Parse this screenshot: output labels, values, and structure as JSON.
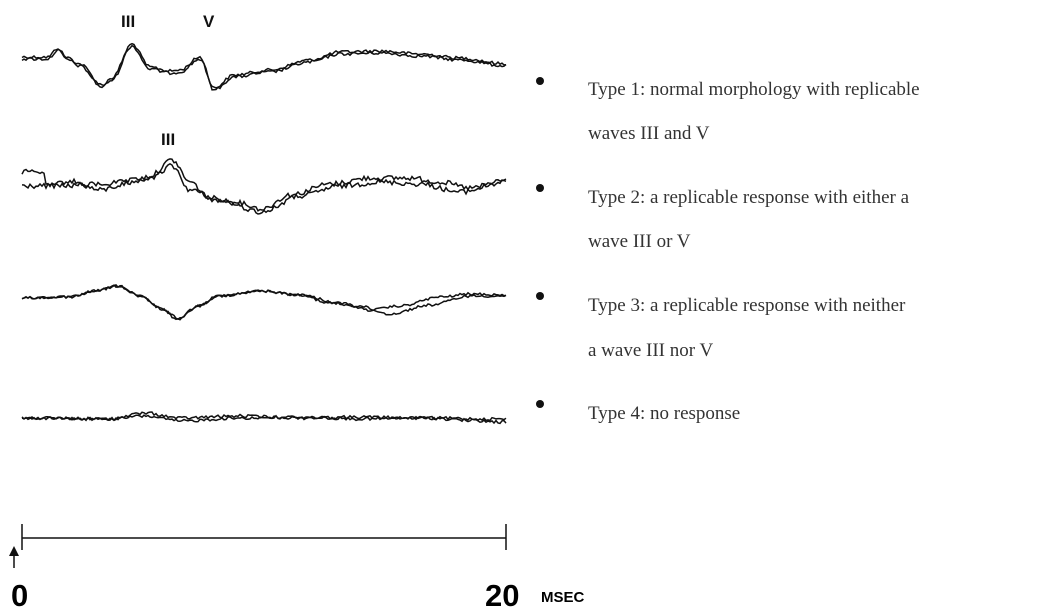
{
  "trace_labels": {
    "t1_wave3": "III",
    "t1_wave5": "V",
    "t2_wave3": "III"
  },
  "legend": [
    {
      "line1": "Type 1: normal morphology with replicable",
      "line2": "waves III and V"
    },
    {
      "line1": "Type 2: a replicable response with either a",
      "line2": "wave III or  V"
    },
    {
      "line1": "Type 3: a replicable response with neither",
      "line2": "a wave III nor V"
    },
    {
      "line1": "Type 4: no response",
      "line2": ""
    }
  ],
  "time_axis": {
    "start": "0",
    "end": "20",
    "unit": "MSEC"
  }
}
